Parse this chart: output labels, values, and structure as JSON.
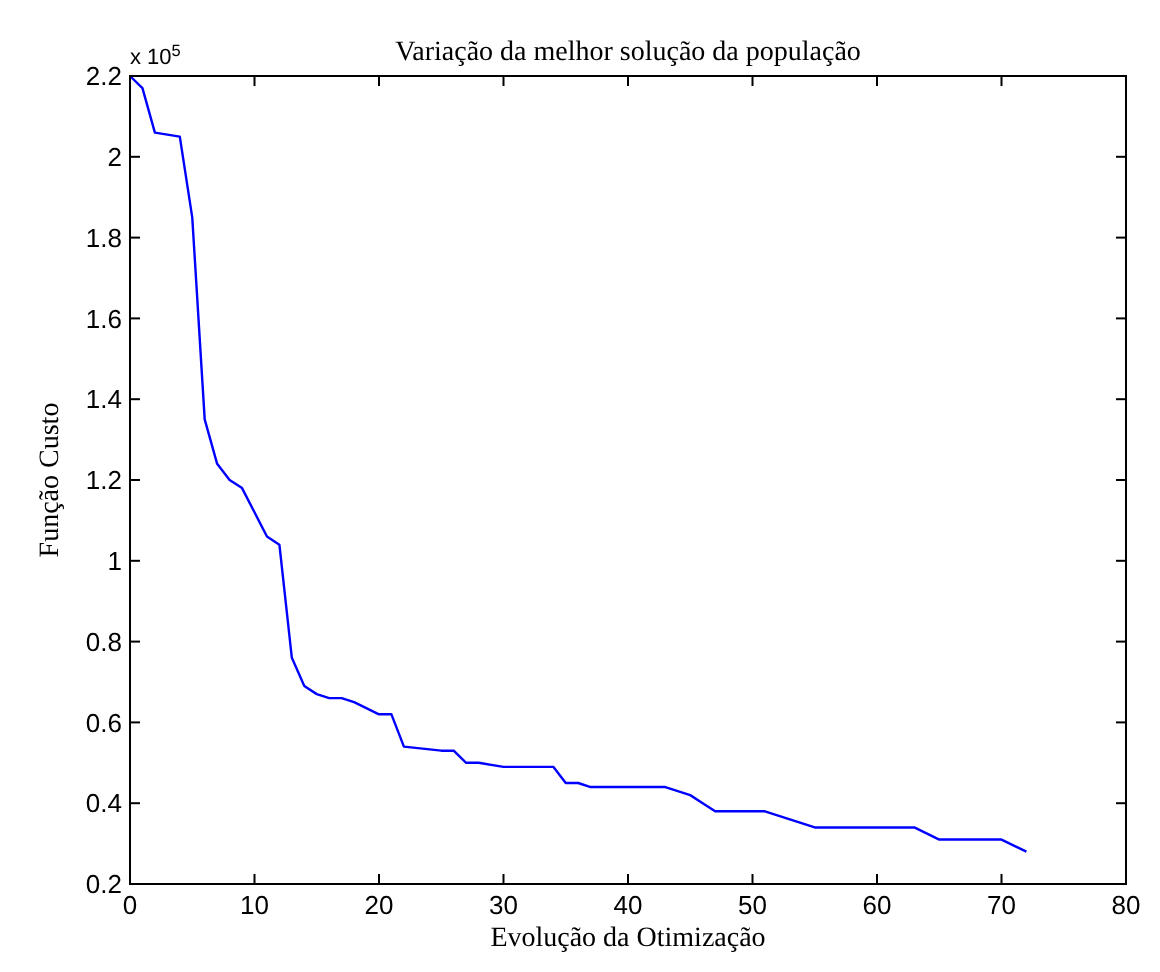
{
  "chart_data": {
    "type": "line",
    "title": "Variação da melhor solução da população",
    "xlabel": "Evolução da Otimização",
    "ylabel": "Função Custo",
    "annotations": [
      "x 10$^{5}$"
    ],
    "x": [
      0,
      1,
      2,
      4,
      5,
      6,
      7,
      8,
      9,
      10,
      11,
      12,
      13,
      14,
      15,
      16,
      17,
      18,
      20,
      21,
      22,
      25,
      26,
      27,
      28,
      30,
      34,
      35,
      36,
      37,
      39,
      43,
      45,
      46,
      47,
      51,
      52,
      53,
      55,
      60,
      63,
      65,
      70,
      72
    ],
    "series": [
      {
        "color": "#0000ff",
        "values": [
          2.2,
          2.17,
          2.06,
          2.05,
          1.85,
          1.35,
          1.24,
          1.2,
          1.18,
          1.12,
          1.06,
          1.04,
          0.76,
          0.69,
          0.67,
          0.66,
          0.66,
          0.65,
          0.62,
          0.62,
          0.54,
          0.53,
          0.53,
          0.5,
          0.5,
          0.49,
          0.49,
          0.45,
          0.45,
          0.44,
          0.44,
          0.44,
          0.42,
          0.4,
          0.38,
          0.38,
          0.37,
          0.36,
          0.34,
          0.34,
          0.34,
          0.31,
          0.31,
          0.28
        ]
      }
    ],
    "xlim": [
      0,
      80
    ],
    "xticks": [
      0,
      10,
      20,
      30,
      40,
      50,
      60,
      70,
      80
    ],
    "ylim": [
      0.2,
      2.2
    ],
    "yticks": [
      0.2,
      0.4,
      0.6,
      0.8,
      1,
      1.2,
      1.4,
      1.6,
      1.8,
      2,
      2.2
    ],
    "grid": false,
    "marker": "none",
    "line_style": "solid"
  }
}
